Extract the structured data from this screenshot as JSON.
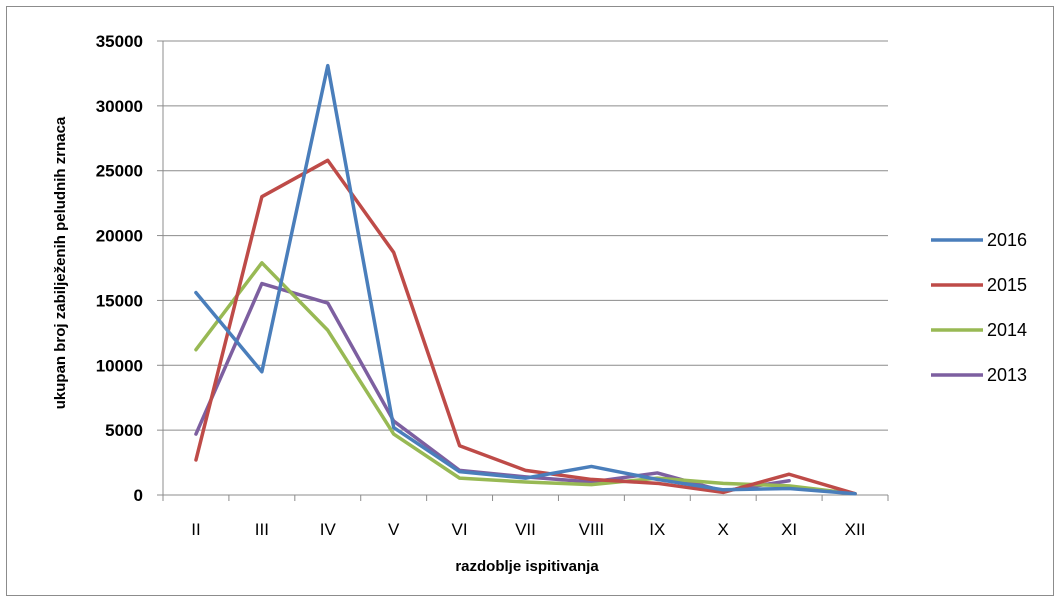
{
  "chart_data": {
    "type": "line",
    "title": "",
    "xlabel": "razdoblje ispitivanja",
    "ylabel": "ukupan broj zabilježenih peludnih zrnaca",
    "categories": [
      "II",
      "III",
      "IV",
      "V",
      "VI",
      "VII",
      "VIII",
      "IX",
      "X",
      "XI",
      "XII"
    ],
    "ylim": [
      0,
      35000
    ],
    "yticks": [
      "0",
      "5000",
      "10000",
      "15000",
      "20000",
      "25000",
      "30000",
      "35000"
    ],
    "grid": true,
    "legend_position": "right",
    "series": [
      {
        "name": "2016",
        "color": "#4a7ebb",
        "values": [
          15600,
          9500,
          33100,
          5200,
          1800,
          1300,
          2200,
          1200,
          400,
          500,
          100
        ]
      },
      {
        "name": "2015",
        "color": "#be4b48",
        "values": [
          2700,
          23000,
          25800,
          18700,
          3800,
          1900,
          1200,
          900,
          200,
          1600,
          100
        ]
      },
      {
        "name": "2014",
        "color": "#98b954",
        "values": [
          11200,
          17900,
          12700,
          4700,
          1300,
          1000,
          800,
          1300,
          900,
          700,
          100
        ]
      },
      {
        "name": "2013",
        "color": "#7d5fa0",
        "values": [
          4700,
          16300,
          14800,
          5700,
          1900,
          1400,
          1000,
          1700,
          300,
          1100,
          null
        ]
      }
    ]
  }
}
